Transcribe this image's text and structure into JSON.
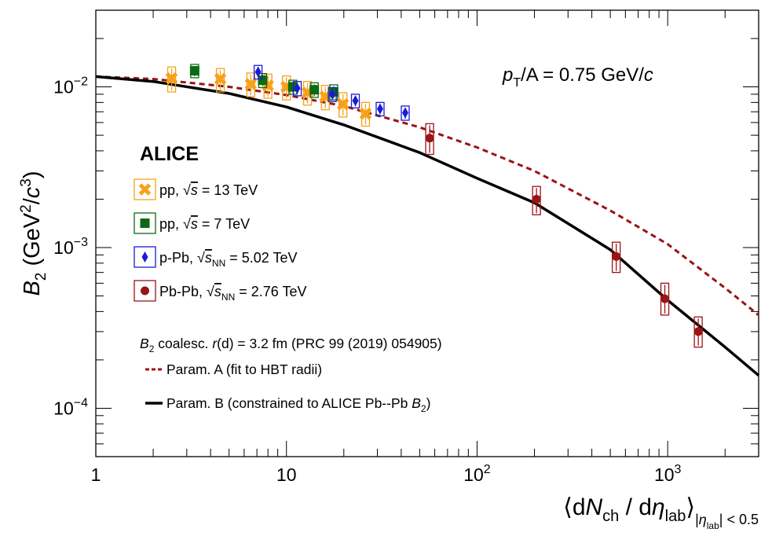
{
  "chart_data": {
    "type": "scatter",
    "x_scale": "log",
    "y_scale": "log",
    "xlim": [
      1,
      3000
    ],
    "ylim": [
      5e-05,
      0.03
    ],
    "x_ticks": [
      {
        "value": 1,
        "base": "1",
        "exp": ""
      },
      {
        "value": 10,
        "base": "10",
        "exp": ""
      },
      {
        "value": 100,
        "base": "10",
        "exp": "2"
      },
      {
        "value": 1000,
        "base": "10",
        "exp": "3"
      }
    ],
    "y_ticks": [
      {
        "value": 0.0001,
        "base": "10",
        "exp": "−4"
      },
      {
        "value": 0.001,
        "base": "10",
        "exp": "−3"
      },
      {
        "value": 0.01,
        "base": "10",
        "exp": "−2"
      }
    ],
    "ylabel": {
      "main": "B",
      "sub": "2",
      "unit_open": " (GeV",
      "sup1": "2",
      "slash": "/",
      "c": "c",
      "sup2": "3",
      "close": ")"
    },
    "xlabel": {
      "open": "⟨d",
      "N": "N",
      "ch": "ch",
      "mid": " / d",
      "eta": "η",
      "lab": "lab",
      "close": "⟩",
      "cond_pre": "|",
      "cond_eta": "η",
      "cond_lab": "lab",
      "cond_post": "| < 0.5"
    },
    "annotation": {
      "p": "p",
      "T": "T",
      "rest": "/A = 0.75 GeV/",
      "c": "c"
    },
    "experiment": "ALICE",
    "legend": [
      {
        "pre": "pp, ",
        "sqrt": "s",
        "sub": "",
        "post": " = 13 TeV",
        "color": "#f7a11a",
        "marker": "cross"
      },
      {
        "pre": "pp, ",
        "sqrt": "s",
        "sub": "",
        "post": " = 7 TeV",
        "color": "#0b6b14",
        "marker": "square"
      },
      {
        "pre": "p-Pb, ",
        "sqrt": "s",
        "sub": "NN",
        "post": " = 5.02 TeV",
        "color": "#1a1ad6",
        "marker": "diamond"
      },
      {
        "pre": "Pb-Pb, ",
        "sqrt": "s",
        "sub": "NN",
        "post": " = 2.76 TeV",
        "color": "#9b1416",
        "marker": "circle"
      }
    ],
    "model_text": {
      "B": "B",
      "sub": "2",
      "mid": " coalesc. ",
      "r": "r",
      "rest": "(d) = 3.2 fm (PRC 99 (2019) 054905)"
    },
    "model_legend": [
      {
        "label": "Param. A (fit to HBT radii)",
        "style": "dashed",
        "color": "#9b1416"
      },
      {
        "label_pre": "Param. B (constrained to ALICE Pb--Pb ",
        "label_B": "B",
        "label_sub": "2",
        "label_post": ")",
        "style": "solid",
        "color": "#000000"
      }
    ],
    "series": [
      {
        "name": "pp 13 TeV",
        "marker": "cross",
        "color": "#f7a11a",
        "points": [
          {
            "x": 2.5,
            "y": 0.0113,
            "sys_lo": 0.0093,
            "sys_hi": 0.0133
          },
          {
            "x": 4.5,
            "y": 0.0112,
            "sys_lo": 0.0093,
            "sys_hi": 0.013
          },
          {
            "x": 6.5,
            "y": 0.0104,
            "sys_lo": 0.0087,
            "sys_hi": 0.0122
          },
          {
            "x": 8.0,
            "y": 0.0102,
            "sys_lo": 0.0085,
            "sys_hi": 0.012
          },
          {
            "x": 10.0,
            "y": 0.01,
            "sys_lo": 0.0083,
            "sys_hi": 0.0117
          },
          {
            "x": 12.9,
            "y": 0.0092,
            "sys_lo": 0.0077,
            "sys_hi": 0.0108
          },
          {
            "x": 16.0,
            "y": 0.0087,
            "sys_lo": 0.0072,
            "sys_hi": 0.0102
          },
          {
            "x": 19.8,
            "y": 0.0078,
            "sys_lo": 0.0065,
            "sys_hi": 0.0092
          },
          {
            "x": 26.0,
            "y": 0.0068,
            "sys_lo": 0.0057,
            "sys_hi": 0.008
          }
        ]
      },
      {
        "name": "pp 7 TeV",
        "marker": "square",
        "color": "#0b6b14",
        "points": [
          {
            "x": 3.3,
            "y": 0.0126,
            "sys_lo": 0.0114,
            "sys_hi": 0.0138
          },
          {
            "x": 7.5,
            "y": 0.011,
            "sys_lo": 0.0099,
            "sys_hi": 0.0121
          },
          {
            "x": 10.8,
            "y": 0.01,
            "sys_lo": 0.009,
            "sys_hi": 0.011
          },
          {
            "x": 14.0,
            "y": 0.0096,
            "sys_lo": 0.0086,
            "sys_hi": 0.0106
          },
          {
            "x": 17.7,
            "y": 0.0093,
            "sys_lo": 0.0083,
            "sys_hi": 0.0103
          }
        ]
      },
      {
        "name": "p-Pb 5.02 TeV",
        "marker": "diamond",
        "color": "#1a1ad6",
        "points": [
          {
            "x": 7.1,
            "y": 0.0124,
            "sys_lo": 0.0112,
            "sys_hi": 0.0136
          },
          {
            "x": 11.4,
            "y": 0.0098,
            "sys_lo": 0.0088,
            "sys_hi": 0.0108
          },
          {
            "x": 17.4,
            "y": 0.009,
            "sys_lo": 0.0081,
            "sys_hi": 0.0099
          },
          {
            "x": 23.0,
            "y": 0.0082,
            "sys_lo": 0.0074,
            "sys_hi": 0.009
          },
          {
            "x": 31.0,
            "y": 0.0073,
            "sys_lo": 0.0066,
            "sys_hi": 0.008
          },
          {
            "x": 42.0,
            "y": 0.0069,
            "sys_lo": 0.0062,
            "sys_hi": 0.0076
          }
        ]
      },
      {
        "name": "Pb-Pb 2.76 TeV",
        "marker": "circle",
        "color": "#9b1416",
        "points": [
          {
            "x": 56.4,
            "y": 0.0048,
            "sys_lo": 0.0038,
            "sys_hi": 0.0059
          },
          {
            "x": 205,
            "y": 0.002,
            "sys_lo": 0.0016,
            "sys_hi": 0.0024
          },
          {
            "x": 537,
            "y": 0.00088,
            "sys_lo": 0.0007,
            "sys_hi": 0.00108
          },
          {
            "x": 966,
            "y": 0.00048,
            "sys_lo": 0.00038,
            "sys_hi": 0.0006
          },
          {
            "x": 1447,
            "y": 0.0003,
            "sys_lo": 0.00024,
            "sys_hi": 0.00037
          }
        ]
      }
    ],
    "curves": [
      {
        "name": "Param. A",
        "style": "dashed",
        "color": "#9b1416",
        "x": [
          1,
          2,
          5,
          10,
          20,
          50,
          100,
          200,
          500,
          1000,
          2000,
          3000
        ],
        "y": [
          0.0116,
          0.0112,
          0.01,
          0.0089,
          0.0076,
          0.0056,
          0.0042,
          0.003,
          0.0017,
          0.00105,
          0.00056,
          0.00038
        ]
      },
      {
        "name": "Param. B",
        "style": "solid",
        "color": "#000000",
        "x": [
          1,
          2,
          5,
          10,
          20,
          50,
          100,
          200,
          500,
          1000,
          2000,
          3000
        ],
        "y": [
          0.0116,
          0.0108,
          0.0091,
          0.0075,
          0.0058,
          0.0039,
          0.0027,
          0.0019,
          0.00097,
          0.00047,
          0.00024,
          0.00016
        ]
      }
    ]
  }
}
